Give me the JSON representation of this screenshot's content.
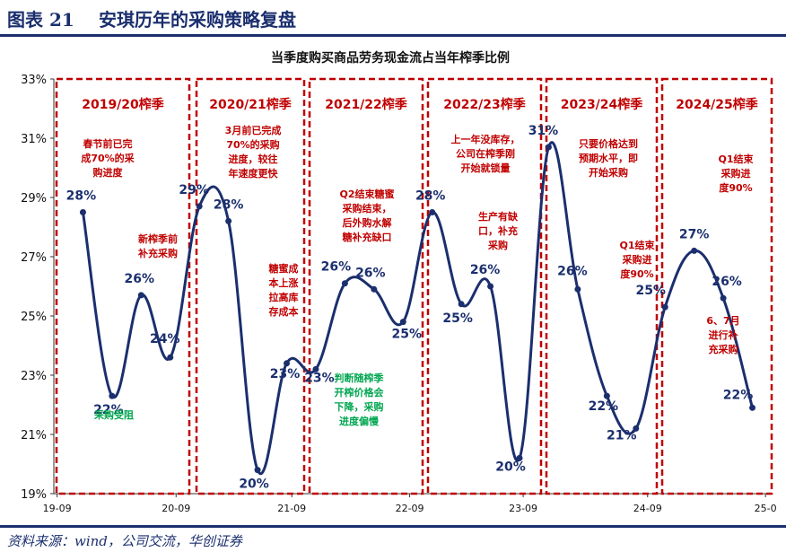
{
  "figure": {
    "number": "图表 21",
    "title": "安琪历年的采购策略复盘",
    "source": "资料来源：wind，公司交流，华创证券"
  },
  "chart_data": {
    "type": "line",
    "title": "当季度购买商品劳务现金流占当年榨季比例",
    "y_unit": "%",
    "ylim": [
      19,
      33
    ],
    "y_ticks": [
      "19%",
      "21%",
      "23%",
      "25%",
      "27%",
      "29%",
      "31%",
      "33%"
    ],
    "x_ticks": [
      "19-09",
      "20-09",
      "21-09",
      "22-09",
      "23-09",
      "24-09",
      "25-0"
    ],
    "xlim": [
      0,
      24.6
    ],
    "grid": false,
    "series": [
      {
        "color": "#1b2f6e",
        "points": [
          {
            "x": 1,
            "y": 28.5,
            "label": "28%"
          },
          {
            "x": 2,
            "y": 22.3,
            "label": "22%"
          },
          {
            "x": 3,
            "y": 25.7,
            "label": "26%"
          },
          {
            "x": 4,
            "y": 23.6,
            "label": "24%"
          },
          {
            "x": 5,
            "y": 28.7,
            "label": "29%"
          },
          {
            "x": 6,
            "y": 28.2,
            "label": "28%"
          },
          {
            "x": 7,
            "y": 19.8,
            "label": "20%"
          },
          {
            "x": 8,
            "y": 23.4,
            "label": "23%"
          },
          {
            "x": 9,
            "y": 23.2,
            "label": "23%"
          },
          {
            "x": 10,
            "y": 26.1,
            "label": "26%"
          },
          {
            "x": 11,
            "y": 25.9,
            "label": "26%"
          },
          {
            "x": 12,
            "y": 24.8,
            "label": "25%"
          },
          {
            "x": 13,
            "y": 28.5,
            "label": "28%"
          },
          {
            "x": 14,
            "y": 25.4,
            "label": "25%"
          },
          {
            "x": 15,
            "y": 26.0,
            "label": "26%"
          },
          {
            "x": 16,
            "y": 20.2,
            "label": "20%"
          },
          {
            "x": 17,
            "y": 30.7,
            "label": "31%"
          },
          {
            "x": 18,
            "y": 25.9,
            "label": "26%"
          },
          {
            "x": 19,
            "y": 22.3,
            "label": "22%"
          },
          {
            "x": 20,
            "y": 21.2,
            "label": "21%"
          },
          {
            "x": 21,
            "y": 25.3,
            "label": "25%"
          },
          {
            "x": 22,
            "y": 27.2,
            "label": "27%"
          },
          {
            "x": 23,
            "y": 25.6,
            "label": "26%"
          },
          {
            "x": 24,
            "y": 21.9,
            "label": "22%"
          }
        ]
      }
    ],
    "seasons": [
      "2019/20榨季",
      "2020/21榨季",
      "2021/22榨季",
      "2022/23榨季",
      "2023/24榨季",
      "2024/25榨季"
    ],
    "annotations": [
      {
        "lines": [
          "春节前已完",
          "成70%的采",
          "购进度"
        ],
        "color": "#c00000"
      },
      {
        "lines": [
          "新榨季前",
          "补充采购"
        ],
        "color": "#c00000"
      },
      {
        "lines": [
          "采购受阻"
        ],
        "color": "#00a650"
      },
      {
        "lines": [
          "3月前已完成",
          "70%的采购",
          "进度，较往",
          "年速度更快"
        ],
        "color": "#c00000"
      },
      {
        "lines": [
          "糖蜜成",
          "本上涨",
          "拉高库",
          "存成本"
        ],
        "color": "#c00000"
      },
      {
        "lines": [
          "Q2结束糖蜜",
          "采购结束，",
          "后外购水解",
          "糖补充缺口"
        ],
        "color": "#c00000"
      },
      {
        "lines": [
          "判断随榨季",
          "开榨价格会",
          "下降，采购",
          "进度偏慢"
        ],
        "color": "#00a650"
      },
      {
        "lines": [
          "上一年没库存，",
          "公司在榨季刚",
          "开始就锁量"
        ],
        "color": "#c00000"
      },
      {
        "lines": [
          "生产有缺",
          "口，补充",
          "采购"
        ],
        "color": "#c00000"
      },
      {
        "lines": [
          "只要价格达到",
          "预期水平，即",
          "开始采购"
        ],
        "color": "#c00000"
      },
      {
        "lines": [
          "Q1结束",
          "采购进",
          "度90%"
        ],
        "color": "#c00000"
      },
      {
        "lines": [
          "Q1结束",
          "采购进",
          "度90%"
        ],
        "color": "#c00000"
      },
      {
        "lines": [
          "6、7月",
          "进行补",
          "充采购"
        ],
        "color": "#c00000"
      }
    ]
  }
}
